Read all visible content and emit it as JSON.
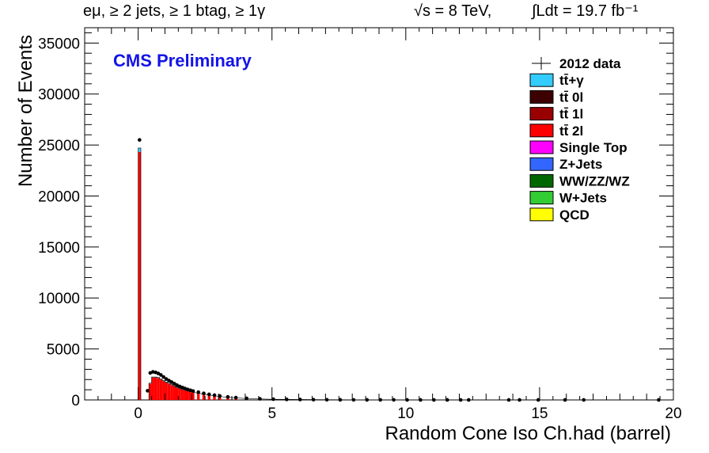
{
  "header": {
    "selection": "eμ, ≥ 2 jets, ≥ 1 btag, ≥ 1γ",
    "energy": "√s = 8 TeV,",
    "lumi": "∫Ldt = 19.7 fb⁻¹"
  },
  "chart_data": {
    "type": "bar",
    "stacked_histogram": true,
    "title": "CMS Preliminary",
    "xlabel": "Random Cone Iso Ch.had (barrel)",
    "ylabel": "Number of Events",
    "xlim": [
      -2,
      20
    ],
    "ylim": [
      0,
      36500
    ],
    "xticks": [
      0,
      5,
      10,
      15,
      20
    ],
    "yticks": [
      0,
      5000,
      10000,
      15000,
      20000,
      25000,
      30000,
      35000
    ],
    "grid": false,
    "legend_position": "top-right",
    "bin_width": 0.1,
    "series": [
      {
        "name": "tt̄+γ",
        "color": "#33ccff"
      },
      {
        "name": "tt̄ 0l",
        "color": "#3d0000"
      },
      {
        "name": "tt̄ 1l",
        "color": "#990000"
      },
      {
        "name": "tt̄ 2l",
        "color": "#ff0000"
      },
      {
        "name": "Single Top",
        "color": "#ff00ff"
      },
      {
        "name": "Z+Jets",
        "color": "#3366ff"
      },
      {
        "name": "WW/ZZ/WZ",
        "color": "#006600"
      },
      {
        "name": "W+Jets",
        "color": "#33cc33"
      },
      {
        "name": "QCD",
        "color": "#ffff00"
      }
    ],
    "data_series": {
      "name": "2012 data"
    },
    "mc_total": {
      "x": [
        0.0,
        0.1,
        0.2,
        0.3,
        0.4,
        0.5,
        0.6,
        0.7,
        0.8,
        0.9,
        1.0,
        1.1,
        1.2,
        1.3,
        1.4,
        1.5,
        1.6,
        1.7,
        1.8,
        1.9,
        2.0,
        2.2,
        2.4,
        2.6,
        2.8,
        3.0,
        3.3,
        3.6,
        4.0,
        4.5,
        5.0,
        6.0,
        7.0,
        8.0,
        10.0
      ],
      "y": [
        24700,
        0,
        0,
        0,
        1650,
        2250,
        2250,
        2200,
        2050,
        1900,
        1750,
        1650,
        1500,
        1380,
        1250,
        1150,
        1050,
        980,
        900,
        830,
        760,
        650,
        560,
        470,
        400,
        330,
        260,
        200,
        140,
        95,
        65,
        40,
        25,
        15,
        6
      ]
    },
    "data_points": {
      "x": [
        0.0,
        0.3,
        0.4,
        0.5,
        0.6,
        0.7,
        0.8,
        0.9,
        1.0,
        1.1,
        1.2,
        1.3,
        1.4,
        1.5,
        1.6,
        1.7,
        1.8,
        1.9,
        2.0,
        2.2,
        2.4,
        2.6,
        2.8,
        3.0,
        3.3,
        3.6,
        4.0,
        4.5,
        5.0,
        5.5,
        6.0,
        6.5,
        7.0,
        7.5,
        8.0,
        8.5,
        9.0,
        9.5,
        10.0,
        10.5,
        11.0,
        11.5,
        12.0,
        12.3,
        13.8,
        14.2,
        14.9,
        15.9,
        16.6,
        19.4
      ],
      "y": [
        25500,
        900,
        2650,
        2750,
        2700,
        2600,
        2450,
        2250,
        2050,
        1900,
        1750,
        1600,
        1450,
        1330,
        1220,
        1120,
        1030,
        950,
        870,
        760,
        650,
        550,
        470,
        390,
        300,
        230,
        165,
        110,
        75,
        50,
        40,
        28,
        20,
        14,
        10,
        8,
        6,
        5,
        4,
        3,
        3,
        2,
        2,
        1,
        1,
        1,
        1,
        1,
        1,
        1
      ]
    }
  }
}
